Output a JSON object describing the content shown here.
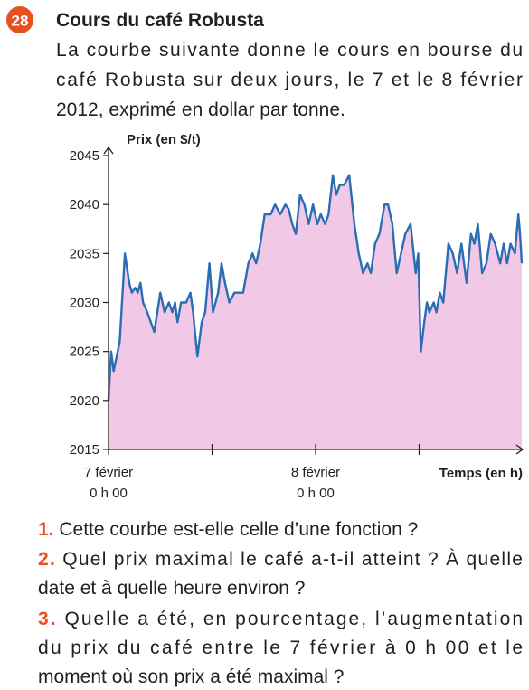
{
  "exercise": {
    "number": "28",
    "title": "Cours du café Robusta",
    "intro": [
      "La courbe suivante donne le cours en bourse du",
      "café Robusta sur deux jours, le 7 et le 8 février",
      "2012, exprimé en dollar par tonne."
    ],
    "questions": [
      {
        "number": "1.",
        "lines": [
          "Cette courbe est-elle celle d’une fonction ?"
        ]
      },
      {
        "number": "2.",
        "lines": [
          "Quel prix maximal le café a-t-il atteint ? À quelle",
          "date et à quelle heure environ ?"
        ]
      },
      {
        "number": "3.",
        "lines": [
          "Quelle a été, en pourcentage, l’augmentation",
          "du prix du café entre le 7 février à 0 h 00 et le",
          "moment où son prix a été maximal ?"
        ]
      }
    ]
  },
  "chart_data": {
    "type": "line",
    "y_label": "Prix (en $/t)",
    "x_label": "Temps (en h)",
    "color": "#2a6db3",
    "fill": "#f1c8e6",
    "xlim": [
      0,
      48
    ],
    "ylim": [
      2015,
      2045
    ],
    "xticks": [
      {
        "value": 0,
        "label": [
          "7 février",
          "0 h 00"
        ]
      },
      {
        "value": 12,
        "label": null
      },
      {
        "value": 24,
        "label": [
          "8 février",
          "0 h 00"
        ]
      },
      {
        "value": 36,
        "label": null
      }
    ],
    "yticks": [
      2015,
      2020,
      2025,
      2030,
      2035,
      2040,
      2045
    ],
    "x": [
      0,
      0.3,
      0.6,
      1.3,
      1.9,
      2.4,
      2.7,
      3.1,
      3.4,
      3.7,
      4.0,
      4.5,
      5.3,
      6.0,
      6.5,
      7.0,
      7.4,
      7.7,
      8.0,
      8.4,
      9.0,
      9.5,
      9.8,
      10.3,
      10.8,
      11.2,
      11.7,
      12.1,
      12.7,
      13.1,
      13.5,
      14.0,
      14.6,
      15.6,
      16.2,
      16.7,
      17.1,
      17.6,
      18.1,
      18.8,
      19.3,
      19.9,
      20.5,
      20.9,
      21.3,
      21.7,
      22.2,
      22.7,
      23.2,
      23.7,
      24.2,
      24.6,
      25.1,
      25.5,
      26.0,
      26.4,
      26.8,
      27.3,
      27.9,
      28.5,
      29.0,
      29.5,
      30.0,
      30.4,
      30.9,
      31.4,
      32.0,
      32.4,
      32.9,
      33.4,
      33.9,
      34.4,
      35.0,
      35.6,
      35.9,
      36.2,
      36.6,
      36.9,
      37.2,
      37.7,
      38.0,
      38.4,
      38.8,
      39.4,
      39.9,
      40.4,
      40.9,
      41.5,
      42.0,
      42.4,
      42.8,
      43.3,
      43.8,
      44.3,
      44.8,
      45.4,
      45.8,
      46.2,
      46.6,
      47.1,
      47.5,
      47.7,
      47.9
    ],
    "values": [
      2020,
      2025,
      2023,
      2026,
      2035,
      2032,
      2031,
      2031.5,
      2031,
      2032,
      2030,
      2029,
      2027,
      2031,
      2029,
      2030,
      2029,
      2030,
      2028,
      2030,
      2030,
      2031,
      2029,
      2024.5,
      2028,
      2029,
      2034,
      2029,
      2031,
      2034,
      2032,
      2030,
      2031,
      2031,
      2034,
      2035,
      2034,
      2036,
      2039,
      2039,
      2040,
      2039,
      2040,
      2039.5,
      2038,
      2037,
      2041,
      2040,
      2038,
      2040,
      2038,
      2039,
      2038,
      2039,
      2043,
      2041,
      2042,
      2042,
      2043,
      2038,
      2035,
      2033,
      2034,
      2033,
      2036,
      2037,
      2040,
      2040,
      2038,
      2033,
      2035,
      2037,
      2038,
      2033,
      2035,
      2025,
      2028,
      2030,
      2029,
      2030,
      2029,
      2031,
      2030,
      2036,
      2035,
      2033,
      2036,
      2032,
      2037,
      2036,
      2038,
      2033,
      2034,
      2037,
      2036,
      2034,
      2036,
      2034,
      2036,
      2035,
      2039,
      2037,
      2034
    ]
  }
}
